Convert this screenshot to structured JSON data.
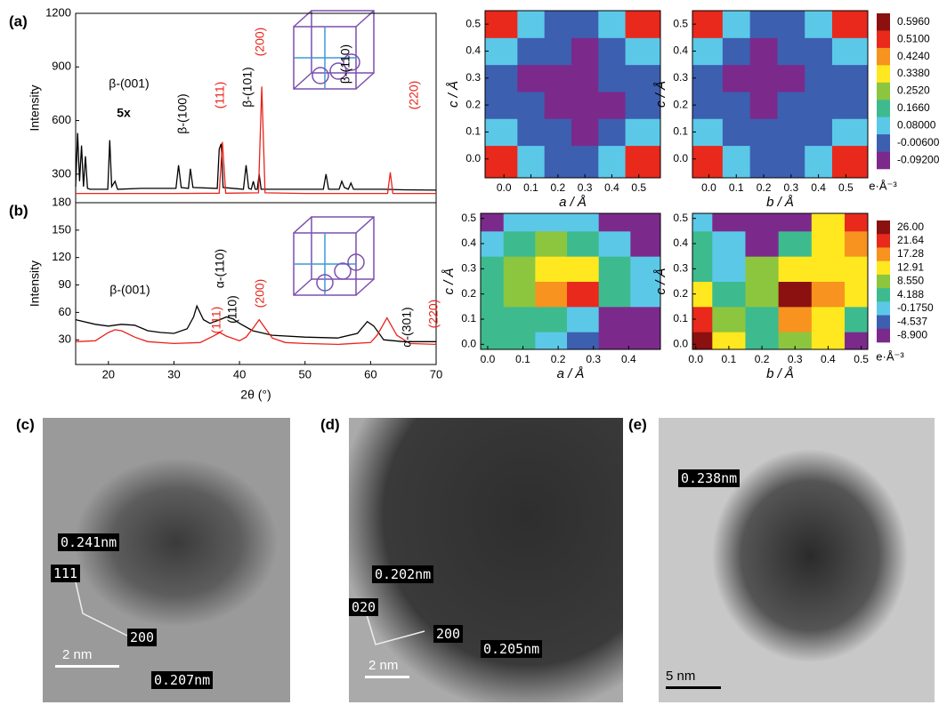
{
  "chart_data": [
    {
      "type": "line",
      "panel_label": "(a)",
      "ylabel": "Intensity",
      "xlim": [
        15,
        70
      ],
      "ylim": [
        140,
        1200
      ],
      "yticks": [
        300,
        600,
        900,
        1200
      ],
      "series": [
        {
          "color": "#000000",
          "x": [
            15,
            15.3,
            15.6,
            15.9,
            16.2,
            16.5,
            16.8,
            17.2,
            19.9,
            20.2,
            20.5,
            21,
            21.4,
            25,
            30.3,
            30.7,
            31.1,
            32.2,
            32.5,
            32.9,
            36.6,
            36.9,
            37.2,
            37.5,
            40.6,
            41,
            41.4,
            41.8,
            42.1,
            42.4,
            42.7,
            43,
            43.3,
            50,
            52.8,
            53.2,
            53.6,
            55.2,
            55.6,
            56,
            56.6,
            57,
            57.4,
            62,
            65,
            70
          ],
          "values": [
            230,
            530,
            260,
            460,
            230,
            400,
            220,
            215,
            215,
            490,
            230,
            260,
            215,
            220,
            220,
            350,
            225,
            220,
            330,
            225,
            220,
            440,
            470,
            225,
            215,
            350,
            220,
            215,
            260,
            215,
            215,
            300,
            215,
            215,
            215,
            300,
            215,
            215,
            260,
            225,
            215,
            250,
            215,
            215,
            212,
            210
          ]
        },
        {
          "color": "#e8231a",
          "x": [
            15,
            30,
            36.9,
            37.4,
            37.9,
            42.9,
            43.4,
            43.9,
            50,
            62.6,
            63,
            63.4,
            70
          ],
          "values": [
            192,
            192,
            193,
            480,
            193,
            195,
            790,
            195,
            192,
            192,
            310,
            192,
            192
          ]
        }
      ],
      "annotations": [
        {
          "text": "β-(001)",
          "color": "#000000"
        },
        {
          "text": "5x",
          "color": "#000000"
        },
        {
          "text": "β-(100)",
          "color": "#000000"
        },
        {
          "text": "(111)",
          "color": "#e8231a"
        },
        {
          "text": "β-(101)",
          "color": "#000000"
        },
        {
          "text": "(200)",
          "color": "#e8231a"
        },
        {
          "text": "β-(110)",
          "color": "#000000"
        },
        {
          "text": "(220)",
          "color": "#e8231a"
        }
      ]
    },
    {
      "type": "line",
      "panel_label": "(b)",
      "ylabel": "Intensity",
      "xlabel": "2θ (°)",
      "xlim": [
        15,
        70
      ],
      "ylim": [
        3,
        180
      ],
      "xticks": [
        20,
        30,
        40,
        50,
        60,
        70
      ],
      "yticks": [
        30,
        60,
        90,
        120,
        150,
        180
      ],
      "series": [
        {
          "color": "#000000",
          "x": [
            15,
            18,
            20,
            22,
            24,
            26,
            28,
            30,
            32,
            33,
            33.5,
            34.5,
            35.5,
            37,
            38,
            39,
            40,
            42,
            45,
            50,
            55,
            58,
            59.5,
            60.5,
            62,
            65,
            70
          ],
          "values": [
            52,
            47,
            45,
            47,
            46,
            40,
            38,
            37,
            42,
            55,
            67,
            52,
            48,
            52,
            55,
            53,
            48,
            40,
            35,
            33,
            32,
            37,
            50,
            45,
            30,
            28,
            28
          ]
        },
        {
          "color": "#e8231a",
          "x": [
            15,
            18,
            20,
            21,
            22,
            24,
            26,
            30,
            34,
            36,
            37,
            38,
            40,
            41,
            42,
            43,
            44,
            45,
            47,
            50,
            55,
            60,
            61,
            62.5,
            64,
            66,
            70
          ],
          "values": [
            28,
            29,
            38,
            41,
            40,
            33,
            28,
            26,
            27,
            34,
            38,
            34,
            29,
            33,
            42,
            52,
            42,
            32,
            27,
            26,
            25,
            27,
            35,
            54,
            35,
            26,
            25
          ]
        }
      ],
      "annotations": [
        {
          "text": "β-(001)",
          "color": "#000000"
        },
        {
          "text": "α-(110)",
          "color": "#000000"
        },
        {
          "text": "(111)",
          "color": "#e8231a"
        },
        {
          "text": "(110)",
          "color": "#000000"
        },
        {
          "text": "(200)",
          "color": "#e8231a"
        },
        {
          "text": "α-(301)",
          "color": "#000000"
        },
        {
          "text": "(220)",
          "color": "#e8231a"
        }
      ]
    },
    {
      "type": "contour",
      "xlabel": "a / Å",
      "ylabel": "c / Å",
      "xlim": [
        -0.07,
        0.58
      ],
      "ylim": [
        -0.07,
        0.55
      ],
      "xticks": [
        {
          "value": 0,
          "label": "0.0"
        },
        0.1,
        0.2,
        0.3,
        0.4,
        0.5
      ],
      "yticks": [
        {
          "value": 0,
          "label": "0.0"
        },
        0.1,
        0.2,
        0.3,
        0.4,
        0.5
      ],
      "x": [
        0,
        0.1,
        0.2,
        0.3,
        0.4,
        0.5
      ],
      "y": [
        0,
        0.1,
        0.2,
        0.3,
        0.4,
        0.5
      ],
      "z": [
        [
          0.55,
          0.12,
          -0.004,
          -0.006,
          0.12,
          0.55
        ],
        [
          0.12,
          0.04,
          -0.006,
          -0.03,
          0.04,
          0.12
        ],
        [
          -0.004,
          -0.006,
          -0.07,
          -0.095,
          -0.01,
          -0.004
        ],
        [
          -0.004,
          -0.01,
          -0.095,
          -0.07,
          -0.006,
          -0.004
        ],
        [
          0.12,
          0.04,
          -0.006,
          -0.01,
          0.04,
          0.12
        ],
        [
          0.55,
          0.12,
          -0.004,
          -0.006,
          0.12,
          0.55
        ]
      ]
    },
    {
      "type": "contour",
      "xlabel": "b / Å",
      "ylabel": "c / Å",
      "xlim": [
        -0.06,
        0.58
      ],
      "ylim": [
        -0.07,
        0.55
      ],
      "xticks": [
        {
          "value": 0,
          "label": "0.0"
        },
        0.1,
        0.2,
        0.3,
        0.4,
        0.5
      ],
      "yticks": [
        {
          "value": 0,
          "label": "0.0"
        },
        0.1,
        0.2,
        0.3,
        0.4,
        0.5
      ],
      "x": [
        0,
        0.1,
        0.2,
        0.3,
        0.4,
        0.5
      ],
      "y": [
        0,
        0.1,
        0.2,
        0.3,
        0.4,
        0.5
      ],
      "z": [
        [
          0.55,
          0.12,
          -0.004,
          -0.006,
          0.12,
          0.55
        ],
        [
          0.12,
          0.04,
          -0.006,
          -0.006,
          0.04,
          0.12
        ],
        [
          -0.004,
          -0.006,
          -0.095,
          -0.006,
          -0.004,
          -0.004
        ],
        [
          -0.004,
          -0.01,
          -0.095,
          -0.07,
          -0.004,
          -0.004
        ],
        [
          0.12,
          0.04,
          -0.07,
          -0.006,
          0.04,
          0.12
        ],
        [
          0.55,
          0.12,
          -0.004,
          -0.006,
          0.12,
          0.55
        ]
      ]
    },
    {
      "type": "colorbar",
      "label": "e·Å⁻³",
      "levels": [
        {
          "value": 0.596,
          "label": "0.5960"
        },
        {
          "value": 0.51,
          "label": "0.5100"
        },
        {
          "value": 0.424,
          "label": "0.4240"
        },
        {
          "value": 0.338,
          "label": "0.3380"
        },
        {
          "value": 0.252,
          "label": "0.2520"
        },
        {
          "value": 0.166,
          "label": "0.1660"
        },
        {
          "value": 0.08,
          "label": "0.08000"
        },
        {
          "value": -0.006,
          "label": "-0.00600"
        },
        {
          "value": -0.092,
          "label": "-0.09200"
        }
      ],
      "colors": [
        "#8b1010",
        "#e8291c",
        "#f7931e",
        "#ffe81f",
        "#8cc63f",
        "#3dbb8f",
        "#5cc8e8",
        "#3d5fb0",
        "#7b2a8c"
      ]
    },
    {
      "type": "contour",
      "xlabel": "a / Å",
      "ylabel": "c / Å",
      "xlim": [
        -0.02,
        0.49
      ],
      "ylim": [
        -0.02,
        0.52
      ],
      "xticks": [
        {
          "value": 0,
          "label": "0.0"
        },
        0.1,
        0.2,
        0.3,
        0.4
      ],
      "yticks": [
        {
          "value": 0,
          "label": "0.0"
        },
        0.1,
        0.2,
        0.3,
        0.4,
        0.5
      ],
      "x": [
        0,
        0.09,
        0.18,
        0.27,
        0.36,
        0.45
      ],
      "y": [
        0,
        0.1,
        0.2,
        0.3,
        0.4,
        0.5
      ],
      "z": [
        [
          8,
          4.5,
          0,
          -2,
          -9,
          -9
        ],
        [
          4.5,
          4.5,
          4.5,
          -0.1,
          -5,
          -9
        ],
        [
          4.5,
          8.6,
          18,
          22,
          4.5,
          -0.1
        ],
        [
          4.5,
          8.6,
          15,
          13,
          4.5,
          -0.1
        ],
        [
          -0.1,
          4.5,
          8.6,
          4.5,
          -0.1,
          -5
        ],
        [
          -5,
          -0.1,
          -0.1,
          -0.1,
          -5,
          -5
        ]
      ]
    },
    {
      "type": "contour",
      "xlabel": "b / Å",
      "ylabel": "c / Å",
      "xlim": [
        -0.01,
        0.52
      ],
      "ylim": [
        -0.02,
        0.52
      ],
      "xticks": [
        {
          "value": 0,
          "label": "0.0"
        },
        0.1,
        0.2,
        0.3,
        0.4,
        0.5
      ],
      "yticks": [
        {
          "value": 0,
          "label": "0.0"
        },
        0.1,
        0.2,
        0.3,
        0.4,
        0.5
      ],
      "x": [
        0,
        0.1,
        0.2,
        0.3,
        0.4,
        0.5
      ],
      "y": [
        0,
        0.1,
        0.2,
        0.3,
        0.4,
        0.5
      ],
      "z": [
        [
          27,
          13,
          4.5,
          9,
          13,
          -5
        ],
        [
          22,
          9,
          4.5,
          18,
          13,
          4.5
        ],
        [
          13,
          4.5,
          9,
          27,
          18,
          13
        ],
        [
          4.5,
          -0.1,
          8.6,
          13,
          13,
          13
        ],
        [
          4.5,
          -0.1,
          -5,
          4.5,
          13,
          18
        ],
        [
          -0.1,
          -9,
          -9,
          -5,
          13,
          22
        ]
      ]
    },
    {
      "type": "colorbar",
      "label": "e·Å⁻³",
      "levels": [
        {
          "value": 26,
          "label": "26.00"
        },
        21.64,
        17.28,
        12.91,
        {
          "value": 8.55,
          "label": "8.550"
        },
        4.188,
        {
          "value": -0.175,
          "label": "-0.1750"
        },
        -4.537,
        {
          "value": -8.9,
          "label": "-8.900"
        }
      ],
      "colors": [
        "#8b1010",
        "#e8291c",
        "#f7931e",
        "#ffe81f",
        "#8cc63f",
        "#3dbb8f",
        "#5cc8e8",
        "#3d5fb0",
        "#7b2a8c"
      ]
    }
  ],
  "images": [
    {
      "label": "(c)",
      "texts": [
        "0.241nm",
        "111",
        "200",
        "0.207nm"
      ],
      "scale_bar": "2 nm"
    },
    {
      "label": "(d)",
      "texts": [
        "0.202nm",
        "020",
        "200",
        "0.205nm"
      ],
      "scale_bar": "2 nm"
    },
    {
      "label": "(e)",
      "texts": [
        "0.238nm"
      ],
      "scale_bar": "5 nm"
    }
  ]
}
